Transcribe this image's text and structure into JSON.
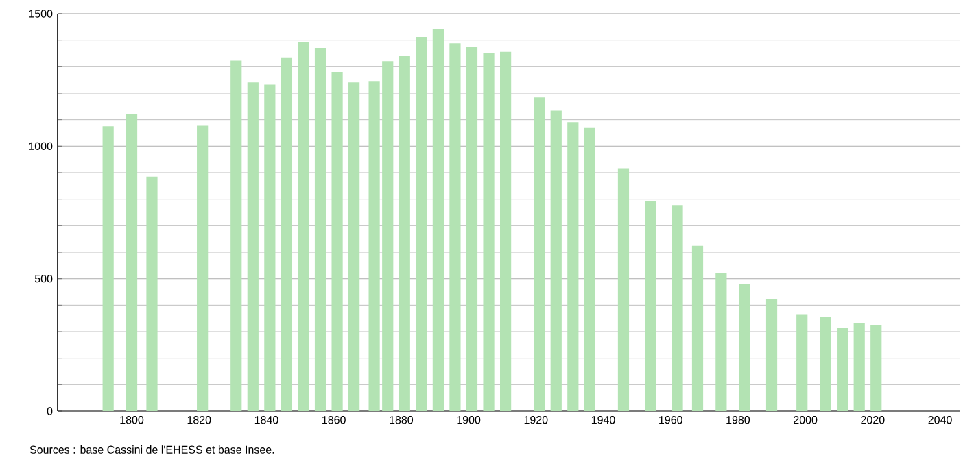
{
  "chart_data": {
    "type": "bar",
    "x": [
      1793,
      1800,
      1806,
      1821,
      1831,
      1836,
      1841,
      1846,
      1851,
      1856,
      1861,
      1866,
      1872,
      1876,
      1881,
      1886,
      1891,
      1896,
      1901,
      1906,
      1911,
      1921,
      1926,
      1931,
      1936,
      1946,
      1954,
      1962,
      1968,
      1975,
      1982,
      1990,
      1999,
      2006,
      2011,
      2016,
      2021
    ],
    "values": [
      1075,
      1120,
      885,
      1077,
      1323,
      1241,
      1232,
      1335,
      1392,
      1371,
      1280,
      1241,
      1246,
      1321,
      1342,
      1412,
      1442,
      1388,
      1373,
      1351,
      1356,
      1184,
      1134,
      1091,
      1069,
      917,
      792,
      778,
      624,
      521,
      481,
      423,
      366,
      356,
      313,
      333,
      326
    ],
    "color": "#b3e3b3",
    "xlim": [
      1778,
      2046
    ],
    "ylim": [
      0,
      1500
    ],
    "xticks": [
      1800,
      1820,
      1840,
      1860,
      1880,
      1900,
      1920,
      1940,
      1960,
      1980,
      2000,
      2020,
      2040
    ],
    "yticks": [
      0,
      {
        "value": 100,
        "label": null
      },
      {
        "value": 200,
        "label": null
      },
      {
        "value": 300,
        "label": null
      },
      {
        "value": 400,
        "label": null
      },
      500,
      {
        "value": 600,
        "label": null
      },
      {
        "value": 700,
        "label": null
      },
      {
        "value": 800,
        "label": null
      },
      {
        "value": 900,
        "label": null
      },
      1000,
      {
        "value": 1100,
        "label": null
      },
      {
        "value": 1200,
        "label": null
      },
      {
        "value": 1300,
        "label": null
      },
      {
        "value": 1400,
        "label": null
      },
      1500
    ],
    "grid": "y",
    "annotations": [
      "Sources : base Cassini de l'EHESS et base Insee."
    ]
  }
}
